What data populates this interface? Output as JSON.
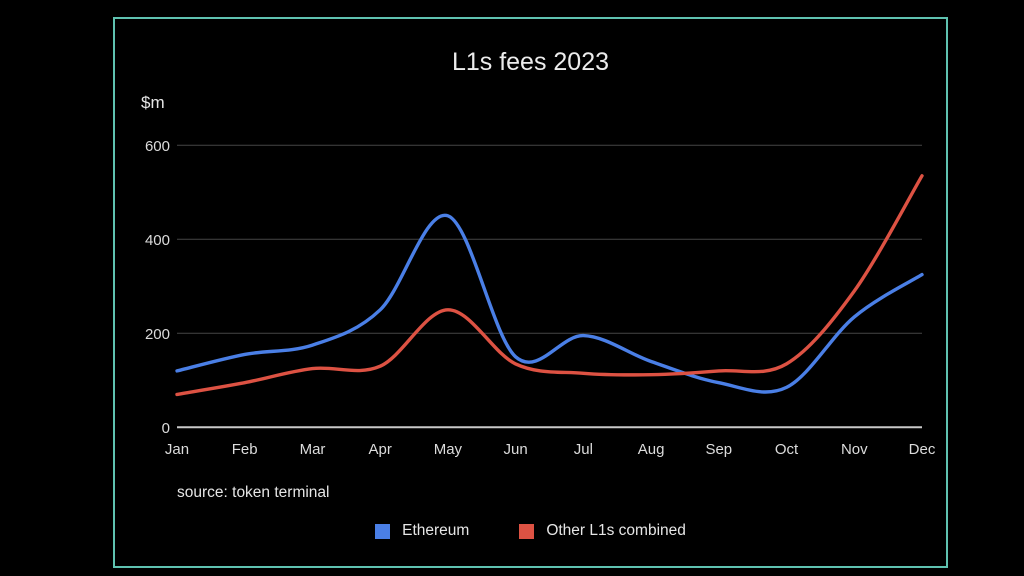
{
  "frame": {
    "background_color": "#000000",
    "border_color": "#5fc2b0"
  },
  "chart_data": {
    "type": "line",
    "title": "L1s fees 2023",
    "ylabel": "$m",
    "xlabel": "",
    "source_note": "source: token terminal",
    "categories": [
      "Jan",
      "Feb",
      "Mar",
      "Apr",
      "May",
      "Jun",
      "Jul",
      "Aug",
      "Sep",
      "Oct",
      "Nov",
      "Dec"
    ],
    "series": [
      {
        "name": "Ethereum",
        "color": "#4a7fe6",
        "values": [
          120,
          155,
          175,
          250,
          450,
          150,
          195,
          140,
          95,
          85,
          235,
          325
        ]
      },
      {
        "name": "Other L1s combined",
        "color": "#dd5243",
        "values": [
          70,
          95,
          125,
          130,
          250,
          135,
          115,
          112,
          120,
          135,
          290,
          535
        ]
      }
    ],
    "ylim": [
      0,
      600
    ],
    "yticks": [
      0,
      200,
      400,
      600
    ],
    "grid": true,
    "line_smoothing": true,
    "legend_position": "bottom",
    "colors": {
      "gridline": "#454545",
      "zero_axis": "#c9c9c9",
      "tick_text": "#dcdcdc",
      "title_text": "#ececec"
    }
  }
}
